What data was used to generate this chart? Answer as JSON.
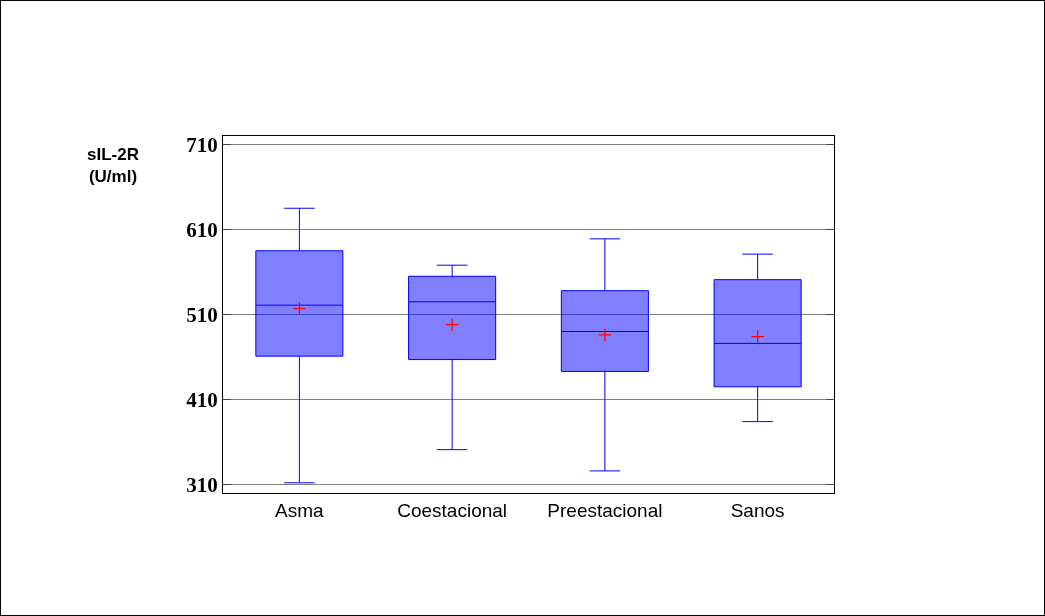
{
  "chart_data": {
    "type": "box",
    "ylabel": "sIL-2R\n(U/ml)",
    "categories": [
      "Asma",
      "Coestacional",
      "Preestacional",
      "Sanos"
    ],
    "series": [
      {
        "color": "#0000ff",
        "boxes": [
          {
            "low": 312,
            "q1": 461,
            "median": 521,
            "q3": 585,
            "high": 635
          },
          {
            "low": 351,
            "q1": 457,
            "median": 525,
            "q3": 555,
            "high": 568
          },
          {
            "low": 326,
            "q1": 443,
            "median": 490,
            "q3": 538,
            "high": 599
          },
          {
            "low": 384,
            "q1": 425,
            "median": 476,
            "q3": 551,
            "high": 581
          }
        ]
      },
      {
        "type": "scatter",
        "color": "#ff0000",
        "marker": "cross",
        "x": [
          "Asma",
          "Coestacional",
          "Preestacional",
          "Sanos"
        ],
        "values": [
          517,
          498,
          486,
          484
        ]
      }
    ],
    "ylim": [
      300,
      720
    ],
    "yticks": [
      310,
      410,
      510,
      610,
      710
    ],
    "grid": "y"
  }
}
